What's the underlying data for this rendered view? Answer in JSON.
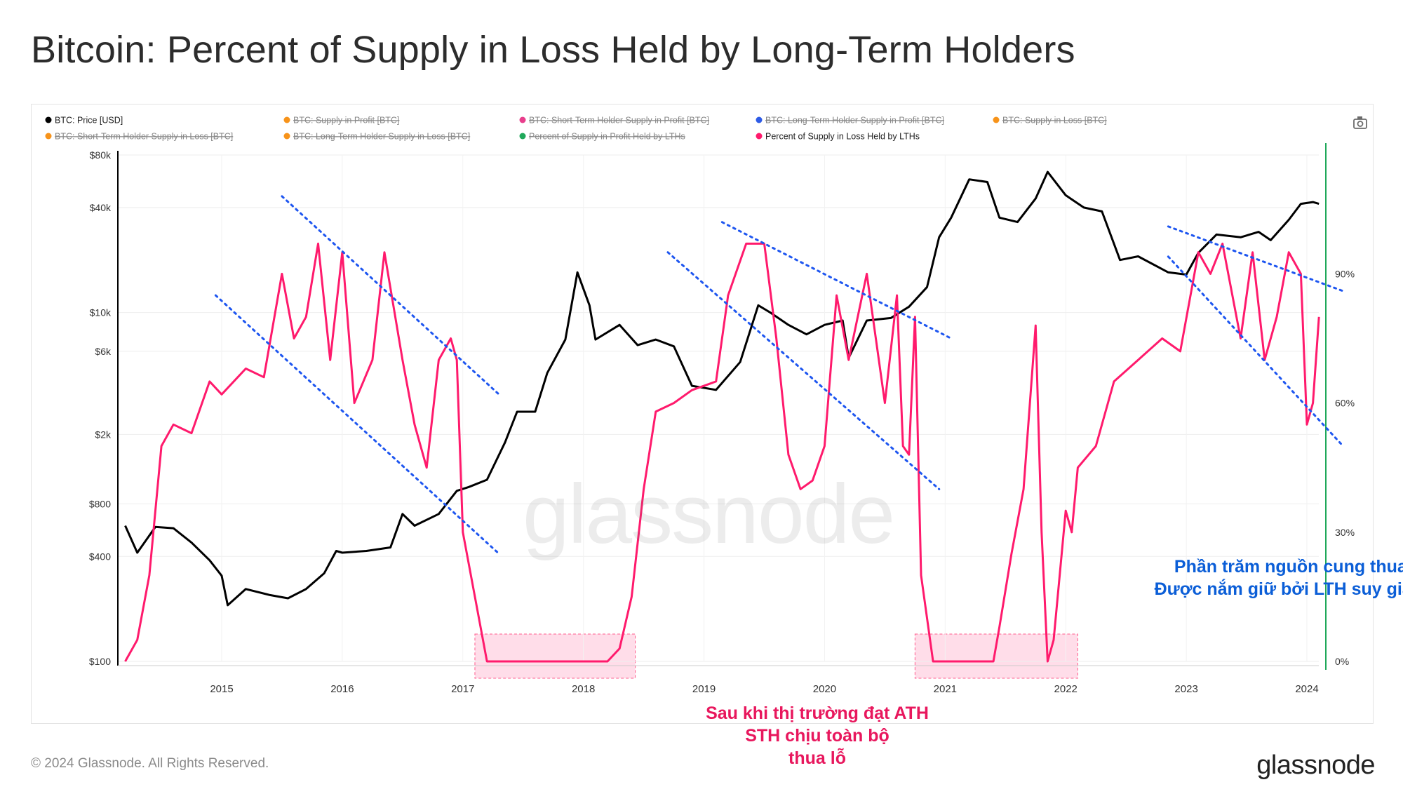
{
  "title": "Bitcoin: Percent of Supply in Loss Held by Long-Term Holders",
  "footer": "© 2024 Glassnode. All Rights Reserved.",
  "brand": "glassnode",
  "watermark": "glassnode",
  "icons": {
    "camera": "camera-icon"
  },
  "colors": {
    "price": "#000000",
    "lth_loss_pct": "#ff1a6c",
    "trend": "#1e56f0",
    "highlight_fill": "#ffd1e1",
    "highlight_border": "#ff5c8d",
    "right_axis": "#1fa85a",
    "ann_pink": "#e8175d",
    "ann_blue": "#0b5ed7"
  },
  "legend": [
    {
      "label": "BTC: Price [USD]",
      "color": "#000000",
      "active": true
    },
    {
      "label": "BTC: Supply in Profit [BTC]",
      "color": "#f7931a",
      "active": false
    },
    {
      "label": "BTC: Short-Term Holder Supply in Profit [BTC]",
      "color": "#e83e8c",
      "active": false
    },
    {
      "label": "BTC: Long-Term Holder Supply in Profit [BTC]",
      "color": "#2e5be6",
      "active": false
    },
    {
      "label": "BTC: Supply in Loss [BTC]",
      "color": "#f7931a",
      "active": false
    },
    {
      "label": "BTC: Short-Term Holder Supply in Loss [BTC]",
      "color": "#f7931a",
      "active": false
    },
    {
      "label": "BTC: Long-Term Holder Supply in Loss [BTC]",
      "color": "#f7931a",
      "active": false
    },
    {
      "label": "Percent of Supply in Profit Held by LTHs",
      "color": "#1fa85a",
      "active": false
    },
    {
      "label": "Percent of Supply in Loss Held by LTHs",
      "color": "#ff1a6c",
      "active": true
    }
  ],
  "annotations": {
    "pink": [
      "Sau khi thị trường đạt ATH",
      "STH chịu toàn bộ",
      "thua lỗ"
    ],
    "blue": [
      "Phần trăm nguồn cung thua lỗ",
      "Được nắm giữ bởi LTH suy giảm"
    ]
  },
  "chart_data": {
    "type": "line",
    "x_ticks": [
      "2015",
      "2016",
      "2017",
      "2018",
      "2019",
      "2020",
      "2021",
      "2022",
      "2023",
      "2024"
    ],
    "y_left": {
      "scale": "log",
      "ticks": [
        100,
        400,
        800,
        2000,
        6000,
        10000,
        40000,
        80000
      ],
      "tick_labels": [
        "$100",
        "$400",
        "$800",
        "$2k",
        "$6k",
        "$10k",
        "$40k",
        "$80k"
      ]
    },
    "y_right": {
      "scale": "linear",
      "ticks": [
        0,
        30,
        60,
        90
      ],
      "tick_labels": [
        "0%",
        "30%",
        "60%",
        "90%"
      ]
    },
    "series": [
      {
        "name": "BTC: Price [USD]",
        "axis": "left",
        "points": [
          [
            2014.2,
            600
          ],
          [
            2014.3,
            420
          ],
          [
            2014.45,
            590
          ],
          [
            2014.6,
            580
          ],
          [
            2014.75,
            480
          ],
          [
            2014.9,
            380
          ],
          [
            2015.0,
            310
          ],
          [
            2015.05,
            210
          ],
          [
            2015.2,
            260
          ],
          [
            2015.4,
            240
          ],
          [
            2015.55,
            230
          ],
          [
            2015.7,
            260
          ],
          [
            2015.85,
            320
          ],
          [
            2015.95,
            430
          ],
          [
            2016.0,
            420
          ],
          [
            2016.2,
            430
          ],
          [
            2016.4,
            450
          ],
          [
            2016.5,
            700
          ],
          [
            2016.6,
            600
          ],
          [
            2016.8,
            700
          ],
          [
            2016.95,
            950
          ],
          [
            2017.05,
            1000
          ],
          [
            2017.2,
            1100
          ],
          [
            2017.35,
            1800
          ],
          [
            2017.45,
            2700
          ],
          [
            2017.6,
            2700
          ],
          [
            2017.7,
            4500
          ],
          [
            2017.85,
            7000
          ],
          [
            2017.95,
            17000
          ],
          [
            2018.05,
            11000
          ],
          [
            2018.1,
            7000
          ],
          [
            2018.3,
            8500
          ],
          [
            2018.45,
            6500
          ],
          [
            2018.6,
            7000
          ],
          [
            2018.75,
            6400
          ],
          [
            2018.9,
            3800
          ],
          [
            2019.1,
            3600
          ],
          [
            2019.3,
            5200
          ],
          [
            2019.45,
            11000
          ],
          [
            2019.55,
            10000
          ],
          [
            2019.7,
            8500
          ],
          [
            2019.85,
            7500
          ],
          [
            2020.0,
            8500
          ],
          [
            2020.15,
            9000
          ],
          [
            2020.2,
            5500
          ],
          [
            2020.35,
            9000
          ],
          [
            2020.55,
            9300
          ],
          [
            2020.7,
            10800
          ],
          [
            2020.85,
            14000
          ],
          [
            2020.95,
            27000
          ],
          [
            2021.05,
            35000
          ],
          [
            2021.2,
            58000
          ],
          [
            2021.35,
            56000
          ],
          [
            2021.45,
            35000
          ],
          [
            2021.6,
            33000
          ],
          [
            2021.75,
            45000
          ],
          [
            2021.85,
            64000
          ],
          [
            2022.0,
            47000
          ],
          [
            2022.15,
            40000
          ],
          [
            2022.3,
            38000
          ],
          [
            2022.45,
            20000
          ],
          [
            2022.6,
            21000
          ],
          [
            2022.85,
            17000
          ],
          [
            2023.0,
            16500
          ],
          [
            2023.1,
            22000
          ],
          [
            2023.25,
            28000
          ],
          [
            2023.45,
            27000
          ],
          [
            2023.6,
            29000
          ],
          [
            2023.7,
            26000
          ],
          [
            2023.85,
            34000
          ],
          [
            2023.95,
            42000
          ],
          [
            2024.05,
            43000
          ],
          [
            2024.1,
            42000
          ]
        ]
      },
      {
        "name": "Percent of Supply in Loss Held by LTHs",
        "axis": "right",
        "points": [
          [
            2014.2,
            0
          ],
          [
            2014.3,
            5
          ],
          [
            2014.4,
            20
          ],
          [
            2014.5,
            50
          ],
          [
            2014.6,
            55
          ],
          [
            2014.75,
            53
          ],
          [
            2014.9,
            65
          ],
          [
            2015.0,
            62
          ],
          [
            2015.2,
            68
          ],
          [
            2015.35,
            66
          ],
          [
            2015.5,
            90
          ],
          [
            2015.6,
            75
          ],
          [
            2015.7,
            80
          ],
          [
            2015.8,
            97
          ],
          [
            2015.9,
            70
          ],
          [
            2016.0,
            95
          ],
          [
            2016.1,
            60
          ],
          [
            2016.25,
            70
          ],
          [
            2016.35,
            95
          ],
          [
            2016.5,
            70
          ],
          [
            2016.6,
            55
          ],
          [
            2016.7,
            45
          ],
          [
            2016.8,
            70
          ],
          [
            2016.9,
            75
          ],
          [
            2016.95,
            70
          ],
          [
            2017.0,
            30
          ],
          [
            2017.1,
            15
          ],
          [
            2017.2,
            0
          ],
          [
            2017.5,
            0
          ],
          [
            2018.0,
            0
          ],
          [
            2018.2,
            0
          ],
          [
            2018.3,
            3
          ],
          [
            2018.4,
            15
          ],
          [
            2018.5,
            40
          ],
          [
            2018.6,
            58
          ],
          [
            2018.75,
            60
          ],
          [
            2018.9,
            63
          ],
          [
            2019.1,
            65
          ],
          [
            2019.2,
            85
          ],
          [
            2019.35,
            97
          ],
          [
            2019.5,
            97
          ],
          [
            2019.6,
            75
          ],
          [
            2019.7,
            48
          ],
          [
            2019.8,
            40
          ],
          [
            2019.9,
            42
          ],
          [
            2020.0,
            50
          ],
          [
            2020.1,
            85
          ],
          [
            2020.2,
            70
          ],
          [
            2020.35,
            90
          ],
          [
            2020.5,
            60
          ],
          [
            2020.6,
            85
          ],
          [
            2020.65,
            50
          ],
          [
            2020.7,
            48
          ],
          [
            2020.75,
            80
          ],
          [
            2020.8,
            20
          ],
          [
            2020.9,
            0
          ],
          [
            2021.2,
            0
          ],
          [
            2021.4,
            0
          ],
          [
            2021.45,
            8
          ],
          [
            2021.55,
            25
          ],
          [
            2021.65,
            40
          ],
          [
            2021.75,
            78
          ],
          [
            2021.8,
            30
          ],
          [
            2021.85,
            0
          ],
          [
            2021.9,
            5
          ],
          [
            2022.0,
            35
          ],
          [
            2022.05,
            30
          ],
          [
            2022.1,
            45
          ],
          [
            2022.25,
            50
          ],
          [
            2022.4,
            65
          ],
          [
            2022.6,
            70
          ],
          [
            2022.8,
            75
          ],
          [
            2022.95,
            72
          ],
          [
            2023.1,
            95
          ],
          [
            2023.2,
            90
          ],
          [
            2023.3,
            97
          ],
          [
            2023.45,
            75
          ],
          [
            2023.55,
            95
          ],
          [
            2023.65,
            70
          ],
          [
            2023.75,
            80
          ],
          [
            2023.85,
            95
          ],
          [
            2023.95,
            90
          ],
          [
            2024.0,
            55
          ],
          [
            2024.05,
            60
          ],
          [
            2024.1,
            80
          ]
        ]
      }
    ],
    "trend_lines": [
      {
        "from": [
          2014.95,
          85
        ],
        "to": [
          2017.3,
          25
        ]
      },
      {
        "from": [
          2015.5,
          108
        ],
        "to": [
          2017.3,
          62
        ]
      },
      {
        "from": [
          2018.7,
          95
        ],
        "to": [
          2020.95,
          40
        ]
      },
      {
        "from": [
          2019.15,
          102
        ],
        "to": [
          2021.05,
          75
        ]
      },
      {
        "from": [
          2022.85,
          94
        ],
        "to": [
          2024.3,
          50
        ]
      },
      {
        "from": [
          2022.85,
          101
        ],
        "to": [
          2024.3,
          86
        ]
      }
    ],
    "highlight_regions": [
      {
        "x0": 2017.1,
        "x1": 2018.43
      },
      {
        "x0": 2020.75,
        "x1": 2022.1
      }
    ],
    "grid": true,
    "legend_position": "top-left"
  }
}
